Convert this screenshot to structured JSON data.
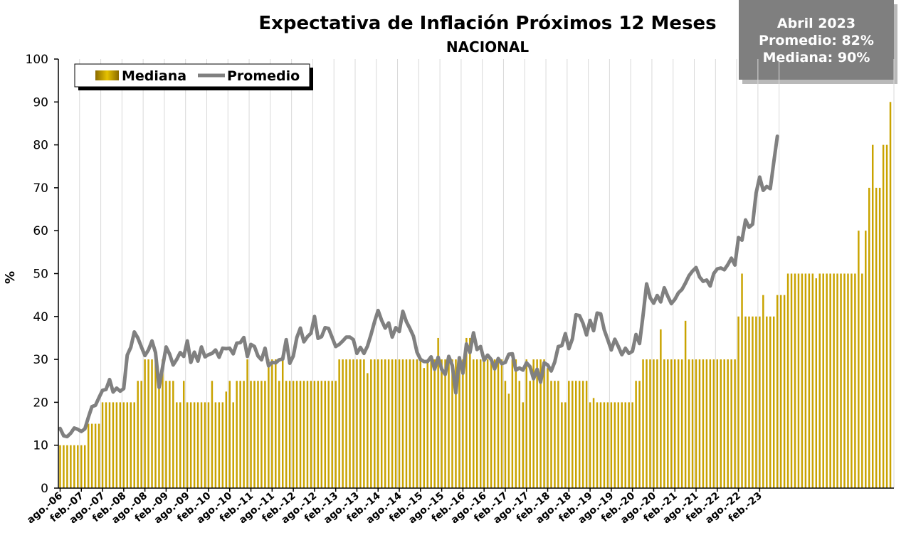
{
  "header": {
    "title": "Expectativa de Inflación Próximos 12 Meses",
    "subtitle": "NACIONAL"
  },
  "infobox": {
    "line1": "Abril 2023",
    "line2": "Promedio: 82%",
    "line3": "Mediana: 90%"
  },
  "colors": {
    "bar": "#c9a300",
    "line": "#808080",
    "grid": "#d9d9d9"
  },
  "chart_data": {
    "type": "bar+line",
    "ylabel": "%",
    "ylim": [
      0,
      100
    ],
    "yticks": [
      0,
      10,
      20,
      30,
      40,
      50,
      60,
      70,
      80,
      90,
      100
    ],
    "grid": true,
    "legend_position": "top-left",
    "x_start": "2006-08",
    "x_end": "2023-04",
    "xtick_labels": [
      "ago.-06",
      "feb.-07",
      "ago.-07",
      "feb.-08",
      "ago.-08",
      "feb.-09",
      "ago.-09",
      "feb.-10",
      "ago.-10",
      "feb.-11",
      "ago.-11",
      "feb.-12",
      "ago.-12",
      "feb.-13",
      "ago.-13",
      "feb.-14",
      "ago.-14",
      "feb.-15",
      "ago.-15",
      "feb.-16",
      "ago.-16",
      "feb.-17",
      "ago.-17",
      "feb.-18",
      "ago.-18",
      "feb.-19",
      "ago.-19",
      "feb.-20",
      "ago.-20",
      "feb.-21",
      "ago.-21",
      "feb.-22",
      "ago.-22",
      "feb.-23"
    ],
    "series": [
      {
        "name": "Mediana",
        "kind": "bar",
        "values": [
          10,
          10,
          10,
          10,
          10,
          10,
          10,
          10,
          15,
          15,
          15,
          15,
          20,
          20,
          20,
          20,
          20,
          20,
          20,
          20,
          20,
          20,
          25,
          25,
          30,
          30,
          30,
          30,
          25,
          30,
          25,
          25,
          25,
          20,
          20,
          25,
          20,
          20,
          20,
          20,
          20,
          20,
          20,
          25,
          20,
          20,
          20,
          22.5,
          25,
          20,
          25,
          25,
          25,
          30,
          25,
          25,
          25,
          25,
          25,
          30,
          30,
          30,
          25,
          30,
          25,
          25,
          25,
          25,
          25,
          25,
          25,
          25,
          25,
          25,
          25,
          25,
          25,
          25,
          25,
          30,
          30,
          30,
          30,
          30,
          30,
          30,
          30,
          26.8,
          30,
          30,
          30,
          30,
          30,
          30,
          30,
          30,
          30,
          30,
          30,
          30,
          30,
          30,
          30,
          28,
          30,
          30,
          30,
          35,
          30,
          30,
          30,
          30,
          30,
          30,
          30,
          35,
          35,
          30,
          30,
          30,
          30,
          30,
          30,
          30,
          30,
          30,
          25,
          22,
          30,
          30,
          25,
          20,
          30,
          25,
          30,
          30,
          30,
          30,
          28,
          25,
          25,
          25,
          20,
          20,
          25,
          25,
          25,
          25,
          25,
          25,
          20,
          21,
          20,
          20,
          20,
          20,
          20,
          20,
          20,
          20,
          20,
          20,
          20,
          25,
          25,
          30,
          30,
          30,
          30,
          30,
          37,
          30,
          30,
          30,
          30,
          30,
          30,
          39,
          30,
          30,
          30,
          30,
          30,
          30,
          30,
          30,
          30,
          30,
          30,
          30,
          30,
          30,
          40,
          50,
          40,
          40,
          40,
          40,
          40,
          45,
          40,
          40,
          40,
          45,
          45,
          45,
          50,
          50,
          50,
          50,
          50,
          50,
          50,
          50,
          48.9,
          50,
          50,
          50,
          50,
          50,
          50,
          50,
          50,
          50,
          50,
          50,
          60,
          50,
          60,
          70,
          80,
          70,
          70,
          80,
          80,
          90
        ]
      },
      {
        "name": "Promedio",
        "kind": "line",
        "values": [
          13.9,
          12.2,
          12.0,
          12.8,
          14.0,
          13.7,
          13.2,
          13.8,
          16.5,
          19.0,
          19.3,
          21.1,
          22.8,
          23.0,
          25.3,
          22.4,
          23.3,
          22.6,
          23.2,
          31.0,
          32.8,
          36.4,
          35.0,
          32.9,
          30.9,
          32.2,
          34.3,
          31.6,
          23.5,
          28.2,
          32.9,
          31.2,
          28.7,
          30.0,
          31.6,
          30.7,
          34.3,
          29.3,
          31.7,
          29.6,
          32.9,
          30.6,
          31.1,
          31.4,
          32.2,
          30.5,
          32.6,
          32.5,
          32.6,
          31.3,
          33.8,
          33.9,
          35.1,
          30.7,
          33.5,
          33.0,
          30.8,
          29.9,
          32.6,
          28.5,
          29.3,
          29.2,
          29.9,
          30.1,
          34.6,
          29.1,
          30.8,
          35.1,
          37.3,
          34.1,
          35.3,
          36.1,
          40.0,
          34.9,
          35.3,
          37.4,
          37.2,
          35.1,
          33.0,
          33.5,
          34.3,
          35.2,
          35.2,
          34.6,
          31.4,
          32.8,
          31.4,
          33.1,
          35.8,
          38.8,
          41.4,
          39.1,
          37.3,
          38.5,
          35.2,
          37.4,
          36.5,
          41.2,
          38.8,
          37.2,
          35.4,
          31.7,
          30.0,
          29.5,
          29.5,
          30.6,
          27.7,
          30.5,
          27.7,
          26.5,
          30.7,
          28.6,
          22.2,
          30.4,
          26.8,
          33.6,
          31.6,
          36.2,
          32.3,
          33.0,
          29.8,
          31.0,
          30.0,
          27.8,
          30.2,
          29.0,
          29.3,
          31.2,
          31.3,
          27.5,
          28.0,
          27.5,
          29.2,
          28.3,
          25.5,
          27.7,
          24.7,
          29.2,
          28.7,
          27.3,
          29.4,
          33.0,
          33.2,
          36.0,
          32.5,
          34.8,
          40.4,
          40.2,
          38.4,
          35.7,
          39.1,
          36.7,
          40.8,
          40.6,
          36.9,
          34.6,
          32.2,
          34.7,
          33.0,
          31.1,
          32.6,
          31.4,
          31.9,
          35.8,
          33.7,
          40.3,
          47.6,
          44.4,
          43.1,
          44.9,
          43.4,
          46.7,
          44.7,
          43.0,
          44.0,
          45.5,
          46.3,
          47.8,
          49.5,
          50.6,
          51.4,
          49.2,
          48.2,
          48.5,
          47.1,
          50.0,
          51.1,
          51.3,
          50.9,
          52.1,
          53.6,
          52.0,
          58.4,
          57.8,
          62.5,
          60.8,
          61.5,
          68.8,
          72.5,
          69.4,
          70.3,
          69.8,
          76.0,
          82.0
        ]
      }
    ]
  }
}
